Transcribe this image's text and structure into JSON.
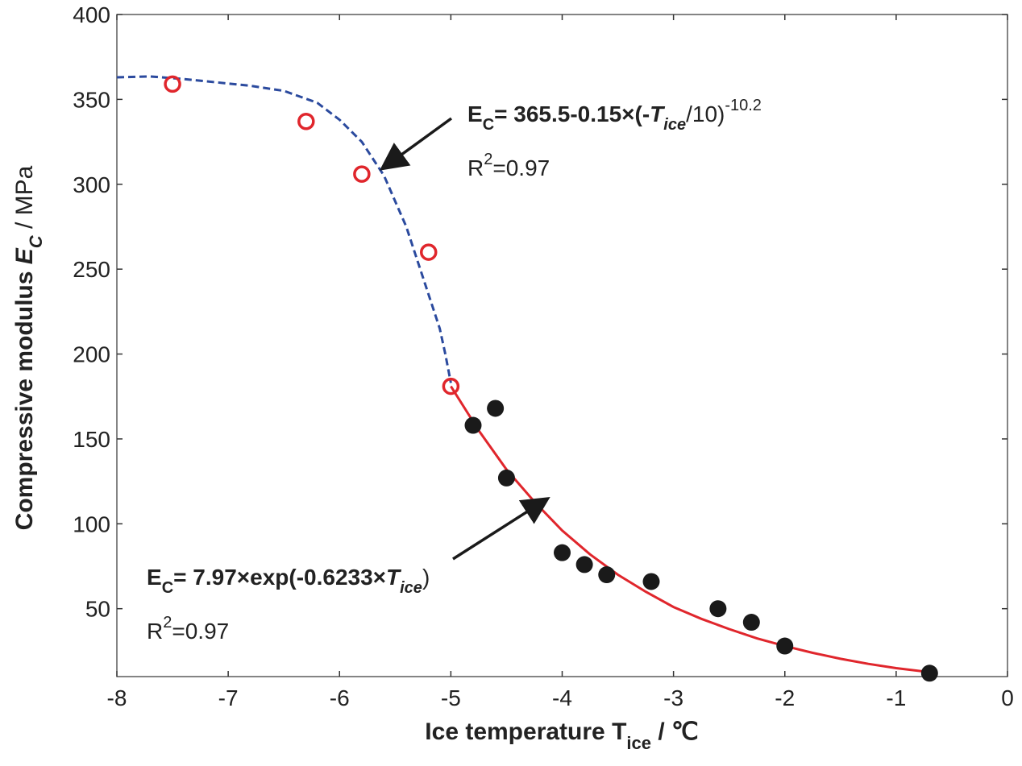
{
  "chart_data": {
    "type": "scatter",
    "title": "",
    "xlabel": {
      "main": "Ice temperature T",
      "sub": "ice",
      "unit": " / ℃"
    },
    "ylabel": {
      "main": "Compressive modulus ",
      "symbol": "E",
      "sub": "C",
      "unit": " / MPa"
    },
    "xlim": [
      -8,
      0
    ],
    "ylim": [
      10,
      400
    ],
    "x_ticks": [
      -8,
      -7,
      -6,
      -5,
      -4,
      -3,
      -2,
      -1,
      0
    ],
    "y_ticks": [
      50,
      100,
      150,
      200,
      250,
      300,
      350,
      400
    ],
    "x_tick_labels": [
      "-8",
      "-7",
      "-6",
      "-5",
      "-4",
      "-3",
      "-2",
      "-1",
      "0"
    ],
    "y_tick_labels": [
      "50",
      "100",
      "150",
      "200",
      "250",
      "300",
      "350",
      "400"
    ],
    "grid": false,
    "colors": {
      "open_marker": "#e0262c",
      "filled_marker": "#1a1a1a",
      "dashed_fit": "#2b4a9e",
      "solid_fit": "#e0262c"
    },
    "series": [
      {
        "marker": "open-circle",
        "x": [
          -7.5,
          -6.3,
          -5.8,
          -5.2,
          -5.0
        ],
        "y": [
          359,
          337,
          306,
          260,
          181
        ]
      },
      {
        "marker": "filled-circle",
        "x": [
          -4.8,
          -4.6,
          -4.5,
          -4.0,
          -3.8,
          -3.6,
          -3.2,
          -2.6,
          -2.3,
          -2.0,
          -0.7
        ],
        "y": [
          158,
          168,
          127,
          83,
          76,
          70,
          66,
          50,
          42,
          28,
          12
        ]
      },
      {
        "type": "line",
        "style": "dashed",
        "x": [
          -8.0,
          -7.7,
          -7.4,
          -7.1,
          -6.8,
          -6.5,
          -6.2,
          -6.0,
          -5.8,
          -5.6,
          -5.4,
          -5.3,
          -5.2,
          -5.1,
          -5.05,
          -5.0
        ],
        "y": [
          363,
          363.5,
          362,
          360,
          358,
          355,
          348,
          338,
          325,
          305,
          275,
          255,
          235,
          215,
          200,
          183
        ]
      },
      {
        "type": "line",
        "style": "solid",
        "x": [
          -5.0,
          -4.75,
          -4.5,
          -4.25,
          -4.0,
          -3.75,
          -3.5,
          -3.25,
          -3.0,
          -2.75,
          -2.5,
          -2.25,
          -2.0,
          -1.75,
          -1.5,
          -1.25,
          -1.0,
          -0.75,
          -0.7
        ],
        "y": [
          181,
          155,
          132,
          113,
          96,
          82,
          70,
          60,
          51,
          44,
          38,
          32.5,
          28,
          24,
          20.5,
          17.5,
          15,
          13,
          12.5
        ]
      }
    ],
    "annotations": [
      {
        "lead": "E",
        "lead_sub": "C",
        "body": "= 365.5-0.15×(-",
        "var": "T",
        "var_sub": "ice",
        "tail": "/10)",
        "tail_sup": "-10.2",
        "r2_prefix": "R",
        "r2_sup": "2",
        "r2_value": "=0.97",
        "arrow_to": {
          "x": -5.6,
          "y": 310
        }
      },
      {
        "lead": "E",
        "lead_sub": "C",
        "body": "= 7.97×exp(-0.6233×",
        "var": "T",
        "var_sub": "ice",
        "tail": ")",
        "r2_prefix": "R",
        "r2_sup": "2",
        "r2_value": "=0.97",
        "arrow_to": {
          "x": -4.15,
          "y": 114
        }
      }
    ]
  }
}
